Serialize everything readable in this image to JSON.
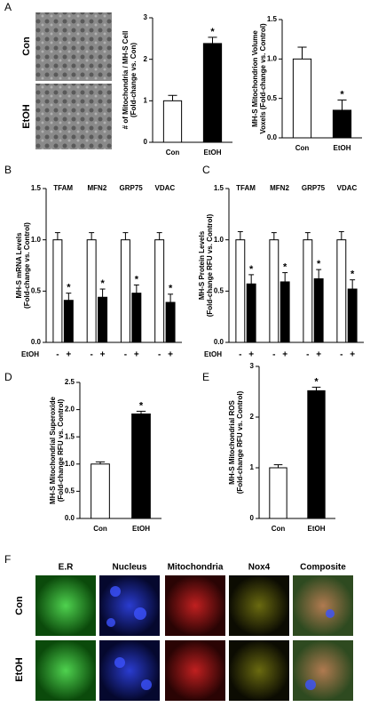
{
  "panel_labels": [
    "A",
    "B",
    "C",
    "D",
    "E",
    "F"
  ],
  "micrographs": {
    "rows": [
      "Con",
      "EtOH"
    ]
  },
  "fluorescence": {
    "columns": [
      "E.R",
      "Nucleus",
      "Mitochondria",
      "Nox4",
      "Composite"
    ],
    "rows": [
      "Con",
      "EtOH"
    ]
  },
  "chart_data": [
    {
      "type": "bar",
      "ylabel": [
        "# of Mitochondria / MH-S Cell",
        "(Fold-change vs. Con)"
      ],
      "categories": [
        "Con",
        "EtOH"
      ],
      "values": [
        1.0,
        2.38
      ],
      "errors": [
        0.13,
        0.15
      ],
      "colors": [
        "#ffffff",
        "#000000"
      ],
      "stars": [
        null,
        "*"
      ],
      "ylim": [
        0,
        3
      ],
      "yticks": [
        0,
        1,
        2,
        3
      ]
    },
    {
      "type": "bar",
      "ylabel": [
        "MH-S Mitochondrion Volume",
        "Voxels (Fold-change vs. Control)"
      ],
      "categories": [
        "Con",
        "EtOH"
      ],
      "values": [
        1.0,
        0.35
      ],
      "errors": [
        0.15,
        0.13
      ],
      "colors": [
        "#ffffff",
        "#000000"
      ],
      "stars": [
        null,
        "*"
      ],
      "ylim": [
        0,
        1.5
      ],
      "yticks": [
        {
          "value": 0,
          "label": "0.0"
        },
        {
          "value": 0.5,
          "label": "0.5"
        },
        {
          "value": 1,
          "label": "1.0"
        },
        {
          "value": 1.5,
          "label": "1.5"
        }
      ]
    },
    {
      "type": "grouped_bar",
      "ylabel": [
        "MH-S mRNA Levels",
        "(Fold-change vs. Control)"
      ],
      "categories": [
        "TFAM",
        "MFN2",
        "GRP75",
        "VDAC"
      ],
      "x_row_label": "EtOH",
      "series": [
        {
          "name": "-",
          "color": "#ffffff",
          "values": [
            1.0,
            1.0,
            1.0,
            1.0
          ],
          "errors": [
            0.07,
            0.07,
            0.07,
            0.07
          ]
        },
        {
          "name": "+",
          "color": "#000000",
          "values": [
            0.41,
            0.44,
            0.48,
            0.39
          ],
          "errors": [
            0.07,
            0.08,
            0.08,
            0.08
          ],
          "stars": [
            "*",
            "*",
            "*",
            "*"
          ]
        }
      ],
      "ylim": [
        0,
        1.5
      ],
      "yticks": [
        {
          "value": 0,
          "label": "0.0"
        },
        {
          "value": 0.5,
          "label": "0.5"
        },
        {
          "value": 1,
          "label": "1.0"
        },
        {
          "value": 1.5,
          "label": "1.5"
        }
      ]
    },
    {
      "type": "grouped_bar",
      "ylabel": [
        "MH-S Protein Levels",
        "(Fold-change RFU vs. Control)"
      ],
      "categories": [
        "TFAM",
        "MFN2",
        "GRP75",
        "VDAC"
      ],
      "x_row_label": "EtOH",
      "series": [
        {
          "name": "-",
          "color": "#ffffff",
          "values": [
            1.0,
            1.0,
            1.0,
            1.0
          ],
          "errors": [
            0.08,
            0.07,
            0.07,
            0.08
          ]
        },
        {
          "name": "+",
          "color": "#000000",
          "values": [
            0.57,
            0.59,
            0.62,
            0.52
          ],
          "errors": [
            0.09,
            0.09,
            0.09,
            0.09
          ],
          "stars": [
            "*",
            "*",
            "*",
            "*"
          ]
        }
      ],
      "ylim": [
        0,
        1.5
      ],
      "yticks": [
        {
          "value": 0,
          "label": "0.0"
        },
        {
          "value": 0.5,
          "label": "0.5"
        },
        {
          "value": 1,
          "label": "1.0"
        },
        {
          "value": 1.5,
          "label": "1.5"
        }
      ]
    },
    {
      "type": "bar",
      "ylabel": [
        "MH-S Mitochondrial Superoxide",
        "(Fold-change RFU vs. Control)"
      ],
      "categories": [
        "Con",
        "EtOH"
      ],
      "values": [
        1.0,
        1.92
      ],
      "errors": [
        0.04,
        0.05
      ],
      "colors": [
        "#ffffff",
        "#000000"
      ],
      "stars": [
        null,
        "*"
      ],
      "ylim": [
        0,
        2.5
      ],
      "yticks": [
        {
          "value": 0,
          "label": "0.0"
        },
        {
          "value": 0.5,
          "label": "0.5"
        },
        {
          "value": 1,
          "label": "1.0"
        },
        {
          "value": 1.5,
          "label": "1.5"
        },
        {
          "value": 2,
          "label": "2.0"
        },
        {
          "value": 2.5,
          "label": "2.5"
        }
      ]
    },
    {
      "type": "bar",
      "ylabel": [
        "MH-S Mitochondrial ROS",
        "(Fold-change RFU vs. Control)"
      ],
      "categories": [
        "Con",
        "EtOH"
      ],
      "values": [
        1.0,
        2.52
      ],
      "errors": [
        0.06,
        0.07
      ],
      "colors": [
        "#ffffff",
        "#000000"
      ],
      "stars": [
        null,
        "*"
      ],
      "ylim": [
        0,
        3
      ],
      "yticks": [
        0,
        1,
        2,
        3
      ]
    }
  ]
}
